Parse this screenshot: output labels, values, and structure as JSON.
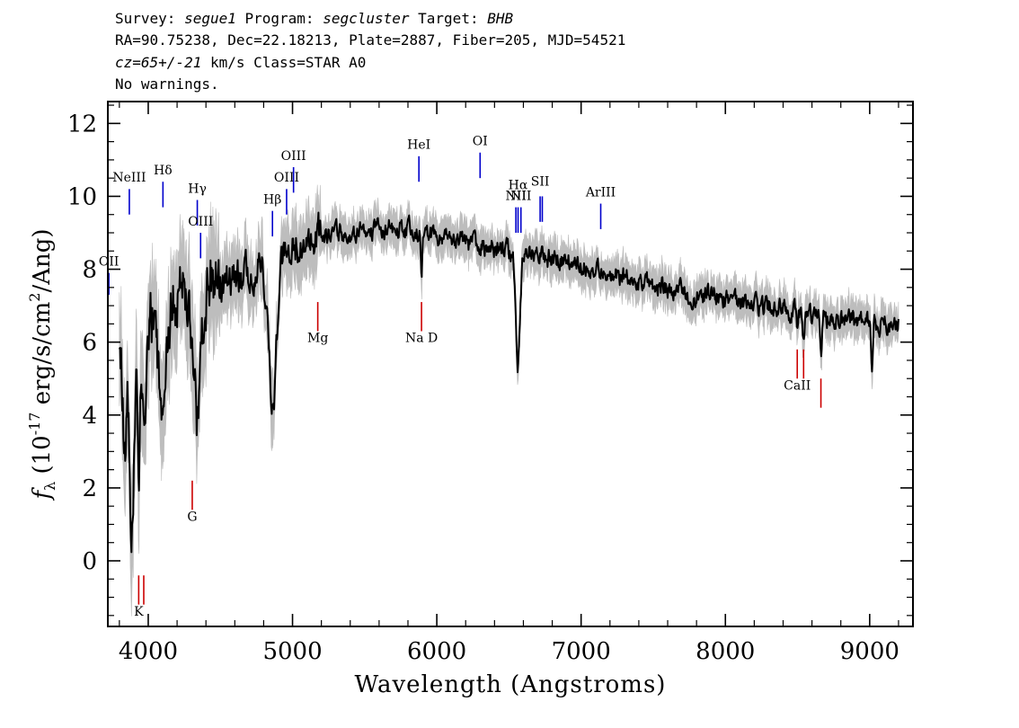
{
  "header": {
    "line1": {
      "survey_label": "Survey: ",
      "survey": "segue1",
      "program_label": " Program: ",
      "program": "segcluster",
      "target_label": " Target: ",
      "target": "BHB"
    },
    "line2": "RA=90.75238, Dec=22.18213, Plate=2887, Fiber=205, MJD=54521",
    "line3": {
      "cz": "cz=65+/-21",
      "rest": " km/s Class=STAR A0"
    },
    "line4": "No warnings."
  },
  "chart_data": {
    "type": "line",
    "xlabel": "Wavelength (Angstroms)",
    "ylabel_prefix": "f",
    "ylabel_sub": "λ",
    "ylabel_main": " (10",
    "ylabel_exp": "-17",
    "ylabel_units": " erg/s/cm",
    "ylabel_exp2": "2",
    "ylabel_tail": "/Ang)",
    "xlim": [
      3720,
      9300
    ],
    "ylim": [
      -1.8,
      12.6
    ],
    "xticks": [
      4000,
      5000,
      6000,
      7000,
      8000,
      9000
    ],
    "yticks": [
      0,
      2,
      4,
      6,
      8,
      10,
      12
    ],
    "x_range_data": [
      3800,
      9200
    ],
    "continuum_knots": [
      [
        3800,
        6.5
      ],
      [
        3850,
        4.5
      ],
      [
        3900,
        5.5
      ],
      [
        3950,
        6.2
      ],
      [
        4000,
        6.6
      ],
      [
        4100,
        7.0
      ],
      [
        4200,
        7.2
      ],
      [
        4300,
        7.3
      ],
      [
        4400,
        7.5
      ],
      [
        4500,
        7.6
      ],
      [
        4600,
        7.7
      ],
      [
        4700,
        7.9
      ],
      [
        4800,
        8.1
      ],
      [
        4900,
        8.4
      ],
      [
        5000,
        8.6
      ],
      [
        5100,
        8.9
      ],
      [
        5200,
        9.0
      ],
      [
        5400,
        9.0
      ],
      [
        5600,
        9.1
      ],
      [
        5800,
        9.1
      ],
      [
        6000,
        8.9
      ],
      [
        6200,
        8.7
      ],
      [
        6400,
        8.6
      ],
      [
        6600,
        8.4
      ],
      [
        6800,
        8.3
      ],
      [
        7000,
        8.1
      ],
      [
        7200,
        7.9
      ],
      [
        7400,
        7.7
      ],
      [
        7600,
        7.5
      ],
      [
        7800,
        7.3
      ],
      [
        8000,
        7.2
      ],
      [
        8200,
        7.0
      ],
      [
        8400,
        6.9
      ],
      [
        8600,
        6.7
      ],
      [
        8800,
        6.6
      ],
      [
        9000,
        6.5
      ],
      [
        9200,
        6.5
      ]
    ],
    "absorption_features": [
      {
        "center": 3835,
        "depth": 2.5,
        "width": 10
      },
      {
        "center": 3889,
        "depth": 4.5,
        "width": 14
      },
      {
        "center": 3934,
        "depth": 3.5,
        "width": 8
      },
      {
        "center": 3970,
        "depth": 3.0,
        "width": 14
      },
      {
        "center": 4102,
        "depth": 3.6,
        "width": 24
      },
      {
        "center": 4340,
        "depth": 3.4,
        "width": 28
      },
      {
        "center": 4861,
        "depth": 4.2,
        "width": 26
      },
      {
        "center": 5893,
        "depth": 1.2,
        "width": 6
      },
      {
        "center": 6563,
        "depth": 3.0,
        "width": 14
      },
      {
        "center": 8498,
        "depth": 0.6,
        "width": 6
      },
      {
        "center": 8542,
        "depth": 0.8,
        "width": 6
      },
      {
        "center": 8662,
        "depth": 1.1,
        "width": 7
      },
      {
        "center": 9015,
        "depth": 1.6,
        "width": 6
      }
    ],
    "emission_lines": [
      {
        "label": "OII",
        "x": 3727,
        "y1": 7.3,
        "y2": 7.9,
        "ly": 8.1
      },
      {
        "label": "NeIII",
        "x": 3869,
        "y1": 9.5,
        "y2": 10.2,
        "ly": 10.4
      },
      {
        "label": "Hδ",
        "x": 4102,
        "y1": 9.7,
        "y2": 10.4,
        "ly": 10.6
      },
      {
        "label": "Hγ",
        "x": 4340,
        "y1": 9.2,
        "y2": 9.9,
        "ly": 10.1
      },
      {
        "label": "OIII",
        "x": 4363,
        "y1": 8.3,
        "y2": 9.0,
        "ly": 9.2
      },
      {
        "label": "Hβ",
        "x": 4861,
        "y1": 8.9,
        "y2": 9.6,
        "ly": 9.8
      },
      {
        "label": "OIII",
        "x": 4959,
        "y1": 9.5,
        "y2": 10.2,
        "ly": 10.4
      },
      {
        "label": "OIII",
        "x": 5007,
        "y1": 10.1,
        "y2": 10.8,
        "ly": 11.0
      },
      {
        "label": "HeI",
        "x": 5876,
        "y1": 10.4,
        "y2": 11.1,
        "ly": 11.3
      },
      {
        "label": "OI",
        "x": 6300,
        "y1": 10.5,
        "y2": 11.2,
        "ly": 11.4
      },
      {
        "label": "NII",
        "x": 6548,
        "y1": 9.0,
        "y2": 9.7,
        "ly": 9.9
      },
      {
        "label": "Hα",
        "x": 6563,
        "y1": 9.0,
        "y2": 9.7,
        "ly": 10.2
      },
      {
        "label": "NII",
        "x": 6583,
        "y1": 9.0,
        "y2": 9.7,
        "ly": 9.9
      },
      {
        "label": "SII",
        "x": 6716,
        "y1": 9.3,
        "y2": 10.0,
        "ly": 10.3
      },
      {
        "label": "SII",
        "x": 6731,
        "y1": 9.3,
        "y2": 10.0,
        "ly": null
      },
      {
        "label": "ArIII",
        "x": 7136,
        "y1": 9.1,
        "y2": 9.8,
        "ly": 10.0
      }
    ],
    "absorption_lines": [
      {
        "label": "K",
        "x": 3934,
        "y1": -1.2,
        "y2": -0.4,
        "ly": -1.5
      },
      {
        "label": "H",
        "x": 3969,
        "y1": -1.2,
        "y2": -0.4,
        "ly": null
      },
      {
        "label": "G",
        "x": 4305,
        "y1": 1.4,
        "y2": 2.2,
        "ly": 1.1
      },
      {
        "label": "Mg",
        "x": 5175,
        "y1": 6.3,
        "y2": 7.1,
        "ly": 6.0
      },
      {
        "label": "Na D",
        "x": 5894,
        "y1": 6.3,
        "y2": 7.1,
        "ly": 6.0
      },
      {
        "label": "CaII",
        "x": 8498,
        "y1": 5.0,
        "y2": 5.8,
        "ly": 4.7
      },
      {
        "label": "CaII",
        "x": 8542,
        "y1": 5.0,
        "y2": 5.8,
        "ly": null
      },
      {
        "label": "CaII",
        "x": 8662,
        "y1": 4.2,
        "y2": 5.0,
        "ly": null
      }
    ],
    "colors": {
      "flux": "#000000",
      "error": "#bdbdbd",
      "emission": "#0000cc",
      "absorption": "#cc0000"
    }
  }
}
